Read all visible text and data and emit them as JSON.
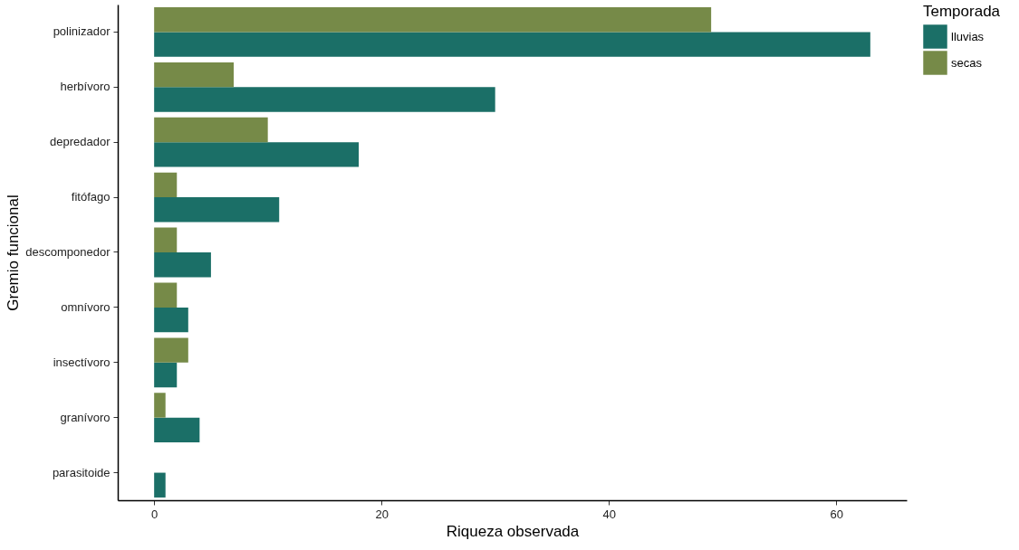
{
  "chart_data": {
    "type": "bar",
    "orientation": "horizontal",
    "xlabel": "Riqueza observada",
    "ylabel": "Gremio funcional",
    "legend_title": "Temporada",
    "legend": "right",
    "grid": false,
    "categories": [
      "polinizador",
      "herbívoro",
      "depredador",
      "fitófago",
      "descomponedor",
      "omnívoro",
      "insectívoro",
      "granívoro",
      "parasitoide"
    ],
    "series": [
      {
        "name": "lluvias",
        "color": "#1b6f67",
        "values": [
          63,
          30,
          18,
          11,
          5,
          3,
          2,
          4,
          1
        ]
      },
      {
        "name": "secas",
        "color": "#768a48",
        "values": [
          49,
          7,
          10,
          2,
          2,
          2,
          3,
          1,
          null
        ]
      }
    ],
    "xlim": [
      -3.2,
      66.2
    ],
    "xticks": [
      0,
      20,
      40,
      60
    ]
  }
}
